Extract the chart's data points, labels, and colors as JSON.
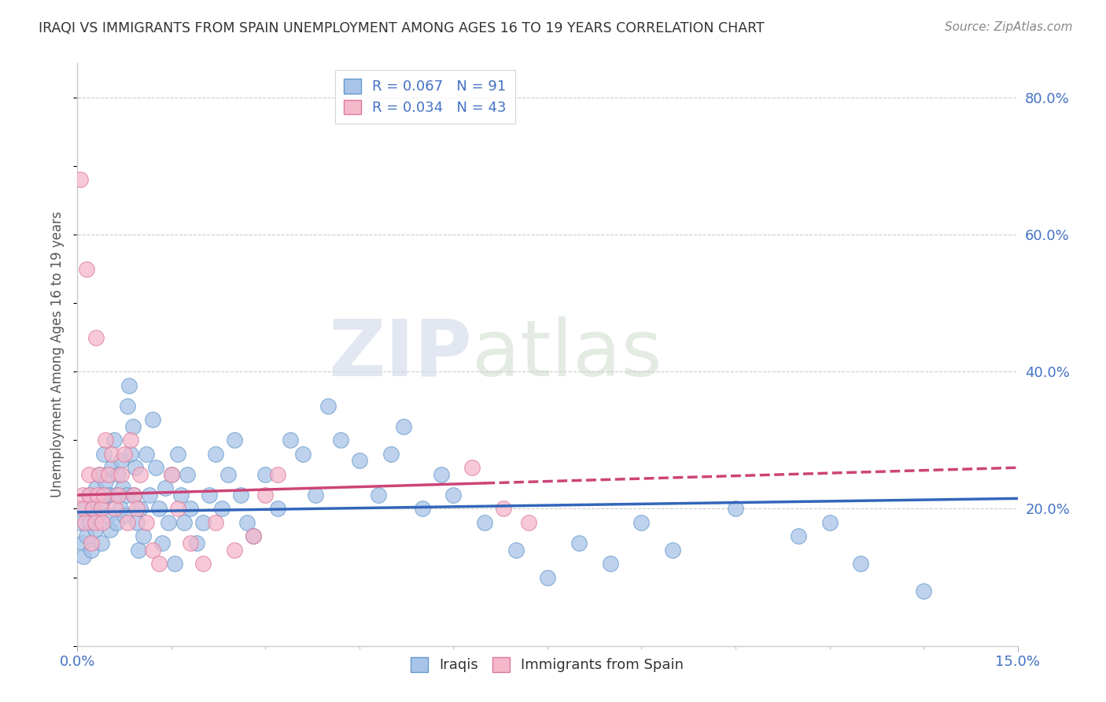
{
  "title": "IRAQI VS IMMIGRANTS FROM SPAIN UNEMPLOYMENT AMONG AGES 16 TO 19 YEARS CORRELATION CHART",
  "source": "Source: ZipAtlas.com",
  "ylabel": "Unemployment Among Ages 16 to 19 years",
  "xlim": [
    0.0,
    15.0
  ],
  "ylim": [
    0.0,
    85.0
  ],
  "series1_label": "Iraqis",
  "series1_R": 0.067,
  "series1_N": 91,
  "series1_color": "#a8c4e8",
  "series1_edge_color": "#6699cc",
  "series1_line_color": "#3366bb",
  "series2_label": "Immigrants from Spain",
  "series2_R": 0.034,
  "series2_N": 43,
  "series2_color": "#f5b8cb",
  "series2_edge_color": "#dd7799",
  "series2_line_color": "#cc4477",
  "watermark_zip": "ZIP",
  "watermark_atlas": "atlas",
  "background_color": "#ffffff",
  "iraqis_x": [
    0.05,
    0.08,
    0.1,
    0.12,
    0.15,
    0.18,
    0.2,
    0.22,
    0.25,
    0.28,
    0.3,
    0.32,
    0.35,
    0.38,
    0.4,
    0.42,
    0.45,
    0.48,
    0.5,
    0.52,
    0.55,
    0.58,
    0.6,
    0.62,
    0.65,
    0.68,
    0.7,
    0.72,
    0.75,
    0.78,
    0.8,
    0.82,
    0.85,
    0.88,
    0.9,
    0.92,
    0.95,
    0.98,
    1.0,
    1.05,
    1.1,
    1.15,
    1.2,
    1.25,
    1.3,
    1.35,
    1.4,
    1.45,
    1.5,
    1.55,
    1.6,
    1.65,
    1.7,
    1.75,
    1.8,
    1.9,
    2.0,
    2.1,
    2.2,
    2.3,
    2.4,
    2.5,
    2.6,
    2.7,
    2.8,
    3.0,
    3.2,
    3.4,
    3.6,
    3.8,
    4.0,
    4.2,
    4.5,
    4.8,
    5.0,
    5.2,
    5.5,
    5.8,
    6.0,
    6.5,
    7.0,
    7.5,
    8.0,
    8.5,
    9.0,
    9.5,
    10.5,
    11.5,
    12.0,
    12.5,
    13.5
  ],
  "iraqis_y": [
    18.0,
    15.0,
    13.0,
    20.0,
    16.0,
    22.0,
    18.0,
    14.0,
    20.0,
    17.0,
    23.0,
    19.0,
    25.0,
    15.0,
    21.0,
    28.0,
    24.0,
    19.0,
    22.0,
    17.0,
    26.0,
    30.0,
    22.0,
    18.0,
    25.0,
    20.0,
    27.0,
    23.0,
    19.0,
    22.0,
    35.0,
    38.0,
    28.0,
    32.0,
    22.0,
    26.0,
    18.0,
    14.0,
    20.0,
    16.0,
    28.0,
    22.0,
    33.0,
    26.0,
    20.0,
    15.0,
    23.0,
    18.0,
    25.0,
    12.0,
    28.0,
    22.0,
    18.0,
    25.0,
    20.0,
    15.0,
    18.0,
    22.0,
    28.0,
    20.0,
    25.0,
    30.0,
    22.0,
    18.0,
    16.0,
    25.0,
    20.0,
    30.0,
    28.0,
    22.0,
    35.0,
    30.0,
    27.0,
    22.0,
    28.0,
    32.0,
    20.0,
    25.0,
    22.0,
    18.0,
    14.0,
    10.0,
    15.0,
    12.0,
    18.0,
    14.0,
    20.0,
    16.0,
    18.0,
    12.0,
    8.0
  ],
  "spain_x": [
    0.05,
    0.08,
    0.1,
    0.12,
    0.15,
    0.18,
    0.2,
    0.22,
    0.25,
    0.28,
    0.3,
    0.32,
    0.35,
    0.38,
    0.4,
    0.42,
    0.45,
    0.5,
    0.55,
    0.6,
    0.65,
    0.7,
    0.75,
    0.8,
    0.85,
    0.9,
    0.95,
    1.0,
    1.1,
    1.2,
    1.3,
    1.5,
    1.6,
    1.8,
    2.0,
    2.2,
    2.5,
    2.8,
    3.0,
    3.2,
    6.3,
    6.8,
    7.2
  ],
  "spain_y": [
    68.0,
    22.0,
    20.0,
    18.0,
    55.0,
    25.0,
    22.0,
    15.0,
    20.0,
    18.0,
    45.0,
    22.0,
    25.0,
    20.0,
    18.0,
    22.0,
    30.0,
    25.0,
    28.0,
    20.0,
    22.0,
    25.0,
    28.0,
    18.0,
    30.0,
    22.0,
    20.0,
    25.0,
    18.0,
    14.0,
    12.0,
    25.0,
    20.0,
    15.0,
    12.0,
    18.0,
    14.0,
    16.0,
    22.0,
    25.0,
    26.0,
    20.0,
    18.0
  ]
}
